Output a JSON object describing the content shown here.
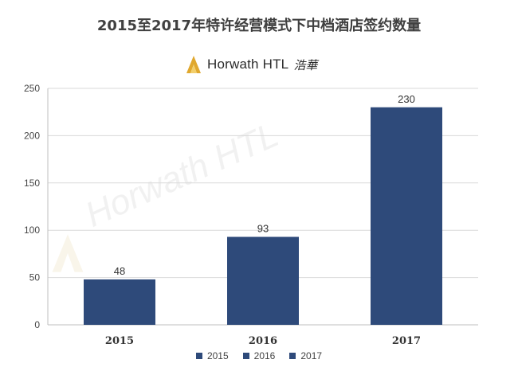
{
  "title": "2015至2017年特许经营模式下中档酒店签约数量",
  "brand": {
    "name": "Horwath HTL",
    "cn": "浩華",
    "watermark": "Horwath HTL"
  },
  "colors": {
    "bar": "#2e4a7a",
    "grid": "#d9d9d9",
    "axis": "#bfbfbf"
  },
  "chart_data": {
    "type": "bar",
    "categories": [
      "2015",
      "2016",
      "2017"
    ],
    "values": [
      48,
      93,
      230
    ],
    "data_labels": [
      "48",
      "93",
      "230"
    ],
    "title": "2015至2017年特许经营模式下中档酒店签约数量",
    "xlabel": "",
    "ylabel": "",
    "ylim": [
      0,
      250
    ],
    "yticks": [
      "0",
      "50",
      "100",
      "150",
      "200",
      "250"
    ],
    "grid": true,
    "legend": {
      "position": "bottom",
      "entries": [
        "2015",
        "2016",
        "2017"
      ]
    }
  }
}
